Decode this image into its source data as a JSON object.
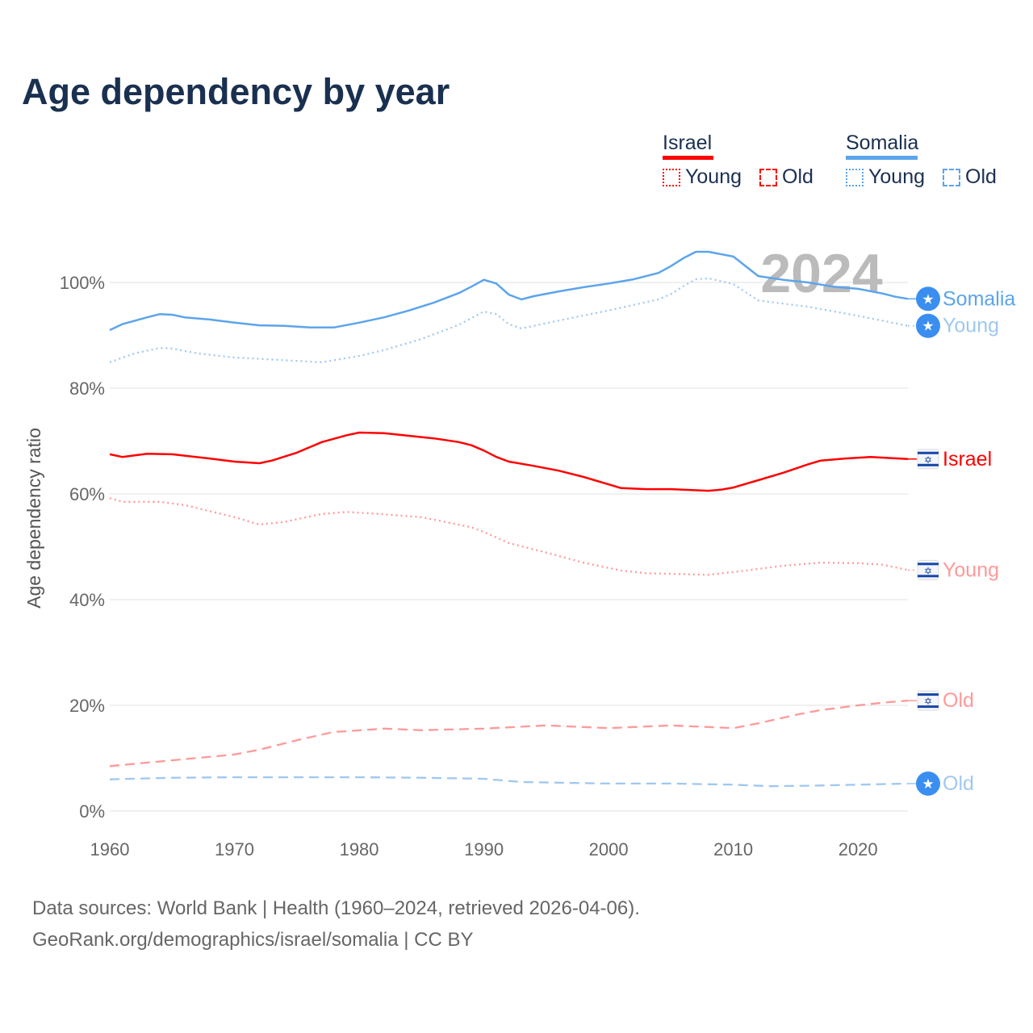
{
  "title": "Age dependency by year",
  "legend": {
    "groups": [
      {
        "country": "Israel",
        "color": "#ff0000",
        "items": [
          {
            "label": "Young",
            "style": "dotted"
          },
          {
            "label": "Old",
            "style": "dashed"
          }
        ]
      },
      {
        "country": "Somalia",
        "color": "#5ca4eb",
        "items": [
          {
            "label": "Young",
            "style": "dotted"
          },
          {
            "label": "Old",
            "style": "dashed"
          }
        ]
      }
    ]
  },
  "year_watermark": "2024",
  "source": {
    "line1": "Data sources: World Bank | Health (1960–2024, retrieved 2026-04-06).",
    "line2": "GeoRank.org/demographics/israel/somalia | CC BY"
  },
  "chart_data": {
    "type": "line",
    "title": "Age dependency by year",
    "xlabel": "",
    "ylabel": "Age dependency ratio",
    "xlim": [
      1960,
      2024
    ],
    "ylim": [
      0,
      110
    ],
    "xticks": [
      1960,
      1970,
      1980,
      1990,
      2000,
      2010,
      2020
    ],
    "yticks": [
      0,
      20,
      40,
      60,
      80,
      100
    ],
    "ytick_labels": [
      "0%",
      "20%",
      "40%",
      "60%",
      "80%",
      "100%"
    ],
    "grid": true,
    "legend_position": "top-right",
    "series": [
      {
        "name": "Somalia",
        "end_label": "Somalia",
        "country": "Somalia",
        "icon": "somalia-flag",
        "color": "#5ca4eb",
        "dash": "solid",
        "labelColor": "#5ca4eb",
        "points": [
          [
            1960,
            91.0
          ],
          [
            1961,
            92.1
          ],
          [
            1963,
            93.4
          ],
          [
            1964,
            94.0
          ],
          [
            1965,
            93.9
          ],
          [
            1966,
            93.4
          ],
          [
            1968,
            93.0
          ],
          [
            1970,
            92.4
          ],
          [
            1972,
            91.9
          ],
          [
            1974,
            91.8
          ],
          [
            1976,
            91.5
          ],
          [
            1978,
            91.5
          ],
          [
            1980,
            92.4
          ],
          [
            1982,
            93.4
          ],
          [
            1984,
            94.7
          ],
          [
            1986,
            96.2
          ],
          [
            1988,
            98.0
          ],
          [
            1989,
            99.2
          ],
          [
            1990,
            100.5
          ],
          [
            1991,
            99.8
          ],
          [
            1992,
            97.7
          ],
          [
            1993,
            96.8
          ],
          [
            1994,
            97.4
          ],
          [
            1996,
            98.3
          ],
          [
            1998,
            99.1
          ],
          [
            2000,
            99.8
          ],
          [
            2002,
            100.6
          ],
          [
            2004,
            101.8
          ],
          [
            2005,
            103.1
          ],
          [
            2006,
            104.6
          ],
          [
            2007,
            105.8
          ],
          [
            2008,
            105.8
          ],
          [
            2010,
            104.9
          ],
          [
            2012,
            101.2
          ],
          [
            2014,
            100.5
          ],
          [
            2016,
            100.0
          ],
          [
            2018,
            99.2
          ],
          [
            2020,
            98.8
          ],
          [
            2022,
            97.9
          ],
          [
            2023,
            97.3
          ],
          [
            2024,
            96.9
          ]
        ]
      },
      {
        "name": "Somalia Young",
        "end_label": "Young",
        "country": "Somalia",
        "icon": "somalia-flag",
        "color": "#9fc8f0",
        "dash": "dotted",
        "labelColor": "#9fc8f0",
        "points": [
          [
            1960,
            84.9
          ],
          [
            1962,
            86.6
          ],
          [
            1964,
            87.6
          ],
          [
            1965,
            87.5
          ],
          [
            1967,
            86.6
          ],
          [
            1970,
            85.8
          ],
          [
            1974,
            85.3
          ],
          [
            1977,
            84.9
          ],
          [
            1980,
            86.1
          ],
          [
            1982,
            87.2
          ],
          [
            1985,
            89.3
          ],
          [
            1988,
            92.0
          ],
          [
            1990,
            94.5
          ],
          [
            1991,
            94.0
          ],
          [
            1992,
            92.1
          ],
          [
            1993,
            91.3
          ],
          [
            1996,
            92.8
          ],
          [
            2000,
            94.7
          ],
          [
            2004,
            96.8
          ],
          [
            2005,
            97.8
          ],
          [
            2006,
            99.3
          ],
          [
            2007,
            100.6
          ],
          [
            2008,
            100.8
          ],
          [
            2010,
            99.7
          ],
          [
            2012,
            96.6
          ],
          [
            2016,
            95.4
          ],
          [
            2020,
            93.7
          ],
          [
            2024,
            91.8
          ]
        ]
      },
      {
        "name": "Somalia Old",
        "end_label": "Old",
        "country": "Somalia",
        "icon": "somalia-flag",
        "color": "#9fc8f0",
        "dash": "dashed",
        "labelColor": "#9fc8f0",
        "points": [
          [
            1960,
            6.0
          ],
          [
            1965,
            6.3
          ],
          [
            1970,
            6.4
          ],
          [
            1975,
            6.4
          ],
          [
            1980,
            6.4
          ],
          [
            1985,
            6.3
          ],
          [
            1990,
            6.1
          ],
          [
            1993,
            5.5
          ],
          [
            2000,
            5.2
          ],
          [
            2005,
            5.2
          ],
          [
            2010,
            5.0
          ],
          [
            2013,
            4.7
          ],
          [
            2016,
            4.8
          ],
          [
            2020,
            5.0
          ],
          [
            2024,
            5.2
          ]
        ]
      },
      {
        "name": "Israel",
        "end_label": "Israel",
        "country": "Israel",
        "icon": "israel-flag",
        "color": "#ff0000",
        "dash": "solid",
        "labelColor": "#ff0000",
        "points": [
          [
            1960,
            67.5
          ],
          [
            1961,
            67.0
          ],
          [
            1963,
            67.6
          ],
          [
            1965,
            67.5
          ],
          [
            1968,
            66.7
          ],
          [
            1970,
            66.1
          ],
          [
            1972,
            65.8
          ],
          [
            1973,
            66.3
          ],
          [
            1975,
            67.8
          ],
          [
            1977,
            69.8
          ],
          [
            1979,
            71.1
          ],
          [
            1980,
            71.6
          ],
          [
            1982,
            71.5
          ],
          [
            1984,
            71.0
          ],
          [
            1986,
            70.5
          ],
          [
            1988,
            69.8
          ],
          [
            1989,
            69.2
          ],
          [
            1990,
            68.2
          ],
          [
            1991,
            67.0
          ],
          [
            1992,
            66.1
          ],
          [
            1994,
            65.3
          ],
          [
            1996,
            64.4
          ],
          [
            1998,
            63.2
          ],
          [
            2000,
            61.8
          ],
          [
            2001,
            61.1
          ],
          [
            2003,
            60.9
          ],
          [
            2005,
            60.9
          ],
          [
            2008,
            60.6
          ],
          [
            2009,
            60.8
          ],
          [
            2010,
            61.2
          ],
          [
            2012,
            62.6
          ],
          [
            2014,
            64.0
          ],
          [
            2016,
            65.6
          ],
          [
            2017,
            66.3
          ],
          [
            2019,
            66.7
          ],
          [
            2021,
            67.0
          ],
          [
            2024,
            66.6
          ]
        ]
      },
      {
        "name": "Israel Young",
        "end_label": "Young",
        "country": "Israel",
        "icon": "israel-flag",
        "color": "#ff9999",
        "dash": "dotted",
        "labelColor": "#ff9999",
        "points": [
          [
            1960,
            59.2
          ],
          [
            1961,
            58.5
          ],
          [
            1964,
            58.5
          ],
          [
            1966,
            57.9
          ],
          [
            1970,
            55.6
          ],
          [
            1972,
            54.2
          ],
          [
            1974,
            54.7
          ],
          [
            1977,
            56.2
          ],
          [
            1979,
            56.6
          ],
          [
            1981,
            56.3
          ],
          [
            1985,
            55.6
          ],
          [
            1989,
            53.7
          ],
          [
            1990,
            52.8
          ],
          [
            1992,
            50.7
          ],
          [
            1995,
            48.9
          ],
          [
            1998,
            47.0
          ],
          [
            2001,
            45.5
          ],
          [
            2003,
            45.0
          ],
          [
            2008,
            44.7
          ],
          [
            2010,
            45.2
          ],
          [
            2014,
            46.4
          ],
          [
            2017,
            47.0
          ],
          [
            2020,
            46.9
          ],
          [
            2022,
            46.6
          ],
          [
            2024,
            45.6
          ]
        ]
      },
      {
        "name": "Israel Old",
        "end_label": "Old",
        "country": "Israel",
        "icon": "israel-flag",
        "color": "#ff9999",
        "dash": "dashed",
        "labelColor": "#ff9999",
        "points": [
          [
            1960,
            8.5
          ],
          [
            1965,
            9.6
          ],
          [
            1970,
            10.7
          ],
          [
            1972,
            11.6
          ],
          [
            1975,
            13.4
          ],
          [
            1978,
            15.0
          ],
          [
            1979,
            15.1
          ],
          [
            1982,
            15.6
          ],
          [
            1985,
            15.3
          ],
          [
            1990,
            15.6
          ],
          [
            1995,
            16.2
          ],
          [
            2000,
            15.7
          ],
          [
            2005,
            16.2
          ],
          [
            2010,
            15.7
          ],
          [
            2012,
            16.6
          ],
          [
            2015,
            18.2
          ],
          [
            2017,
            19.1
          ],
          [
            2020,
            20.0
          ],
          [
            2022,
            20.5
          ],
          [
            2024,
            20.9
          ]
        ]
      }
    ]
  }
}
